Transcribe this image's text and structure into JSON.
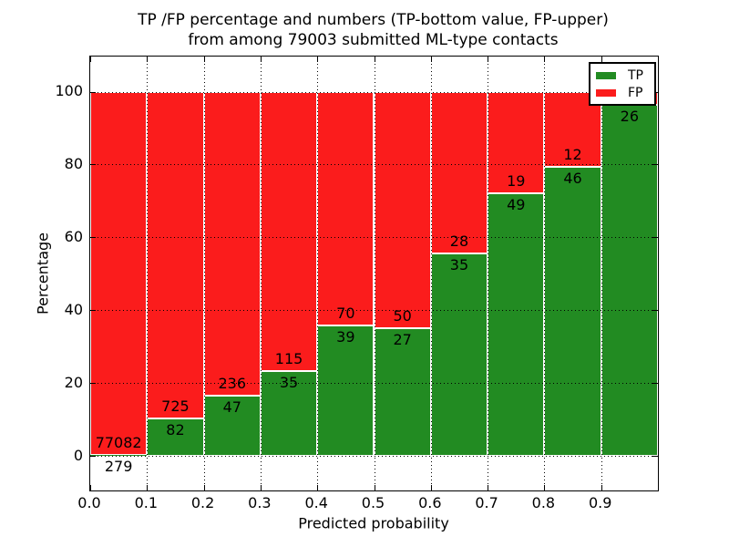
{
  "chart_data": {
    "type": "bar",
    "variant": "stacked-percentage",
    "title_line1": "TP /FP percentage and numbers (TP-bottom value, FP-upper)",
    "title_line2": "from among 79003 submitted ML-type contacts",
    "total_contacts": 79003,
    "xlabel": "Predicted probability",
    "ylabel": "Percentage",
    "x_tick_labels": [
      "0.0",
      "0.1",
      "0.2",
      "0.3",
      "0.4",
      "0.5",
      "0.6",
      "0.7",
      "0.8",
      "0.9"
    ],
    "y_tick_labels": [
      "0",
      "20",
      "40",
      "60",
      "80",
      "100"
    ],
    "xlim": [
      0.0,
      1.0
    ],
    "ylim": [
      -10,
      110
    ],
    "bin_width": 0.1,
    "grid": true,
    "legend_position": "upper right",
    "legend": [
      {
        "label": "TP",
        "color": "#228b22"
      },
      {
        "label": "FP",
        "color": "#fb1c1c"
      }
    ],
    "bars": [
      {
        "bin_start": 0.0,
        "tp": 279,
        "fp": 77082
      },
      {
        "bin_start": 0.1,
        "tp": 82,
        "fp": 725
      },
      {
        "bin_start": 0.2,
        "tp": 47,
        "fp": 236
      },
      {
        "bin_start": 0.3,
        "tp": 35,
        "fp": 115
      },
      {
        "bin_start": 0.4,
        "tp": 39,
        "fp": 70
      },
      {
        "bin_start": 0.5,
        "tp": 27,
        "fp": 50
      },
      {
        "bin_start": 0.6,
        "tp": 35,
        "fp": 28
      },
      {
        "bin_start": 0.7,
        "tp": 49,
        "fp": 19
      },
      {
        "bin_start": 0.8,
        "tp": 46,
        "fp": 12
      },
      {
        "bin_start": 0.9,
        "tp": 26,
        "fp": 1
      }
    ],
    "colors": {
      "tp": "#228b22",
      "fp": "#fb1c1c",
      "axis": "#000000",
      "background": "#ffffff",
      "bar_edge": "#ffffff"
    }
  }
}
